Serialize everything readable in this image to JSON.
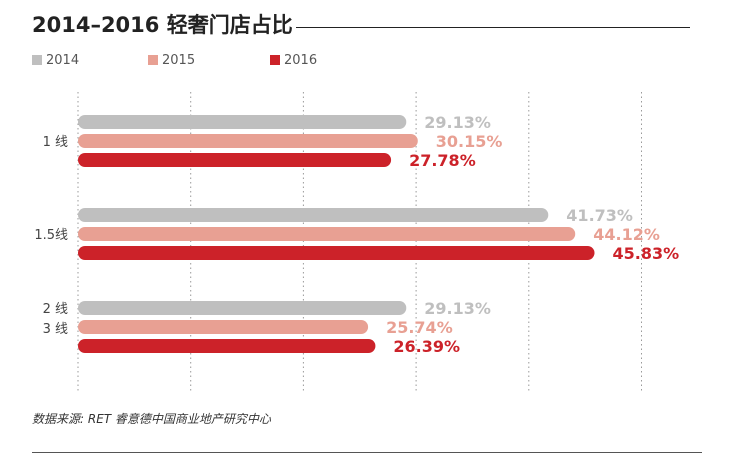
{
  "title": "2014–2016 轻奢门店占比",
  "source": "数据来源: RET 睿意德中国商业地产研究中心",
  "colors": {
    "2014": "#bfbfbf",
    "2015": "#e8a093",
    "2016": "#cc2229"
  },
  "chart_data": {
    "type": "bar",
    "orientation": "horizontal",
    "title": "2014–2016 轻奢门店占比",
    "categories": [
      "1 线",
      "1.5线",
      "2 线\n3 线"
    ],
    "series": [
      {
        "name": "2014",
        "values": [
          29.13,
          41.73,
          29.13
        ],
        "labels": [
          "29.13%",
          "41.73%",
          "29.13%"
        ],
        "color": "#bfbfbf"
      },
      {
        "name": "2015",
        "values": [
          30.15,
          44.12,
          25.74
        ],
        "labels": [
          "30.15%",
          "44.12%",
          "25.74%"
        ],
        "color": "#e8a093"
      },
      {
        "name": "2016",
        "values": [
          27.78,
          45.83,
          26.39
        ],
        "labels": [
          "27.78%",
          "45.83%",
          "26.39%"
        ],
        "color": "#cc2229"
      }
    ],
    "xlim": [
      0,
      50
    ],
    "grid": "vertical dotted",
    "legend": "top-left"
  }
}
